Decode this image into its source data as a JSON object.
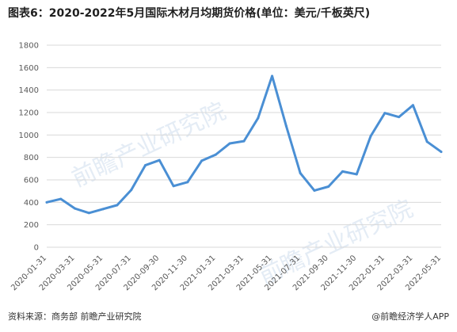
{
  "title": "图表6：2020-2022年5月国际木材月均期货价格(单位：美元/千板英尺)",
  "footer": {
    "source": "资料来源：商务部 前瞻产业研究院",
    "brand": "@前瞻经济学人APP"
  },
  "watermark_text": "前瞻产业研究院",
  "colors": {
    "line": "#4a8fd4",
    "grid": "#d9d9d9",
    "axis_text": "#595959",
    "title": "#1f1f1f"
  },
  "chart_data": {
    "type": "line",
    "title": "图表6：2020-2022年5月国际木材月均期货价格(单位：美元/千板英尺)",
    "xlabel": "",
    "ylabel": "",
    "ylim": [
      0,
      1800
    ],
    "yticks": [
      0,
      200,
      400,
      600,
      800,
      1000,
      1200,
      1400,
      1600,
      1800
    ],
    "grid": "horizontal",
    "categories": [
      "2020-01-31",
      "2020-02-29",
      "2020-03-31",
      "2020-04-30",
      "2020-05-31",
      "2020-06-30",
      "2020-07-31",
      "2020-08-31",
      "2020-09-30",
      "2020-10-31",
      "2020-11-30",
      "2020-12-31",
      "2021-01-31",
      "2021-02-28",
      "2021-03-31",
      "2021-04-30",
      "2021-05-31",
      "2021-06-30",
      "2021-07-31",
      "2021-08-31",
      "2021-09-30",
      "2021-10-31",
      "2021-11-30",
      "2021-12-31",
      "2022-01-31",
      "2022-02-28",
      "2022-03-31",
      "2022-04-30",
      "2022-05-31"
    ],
    "xtick_labels": [
      "2020-01-31",
      "2020-03-31",
      "2020-05-31",
      "2020-07-31",
      "2020-09-30",
      "2020-11-30",
      "2021-01-31",
      "2021-03-31",
      "2021-05-31",
      "2021-07-31",
      "2021-09-30",
      "2021-11-30",
      "2022-01-31",
      "2022-03-31",
      "2022-05-31"
    ],
    "series": [
      {
        "values": [
          400,
          430,
          345,
          305,
          340,
          375,
          510,
          730,
          775,
          545,
          580,
          770,
          825,
          925,
          945,
          1150,
          1525,
          1080,
          660,
          505,
          540,
          675,
          650,
          990,
          1195,
          1160,
          1265,
          940,
          850
        ]
      }
    ]
  }
}
